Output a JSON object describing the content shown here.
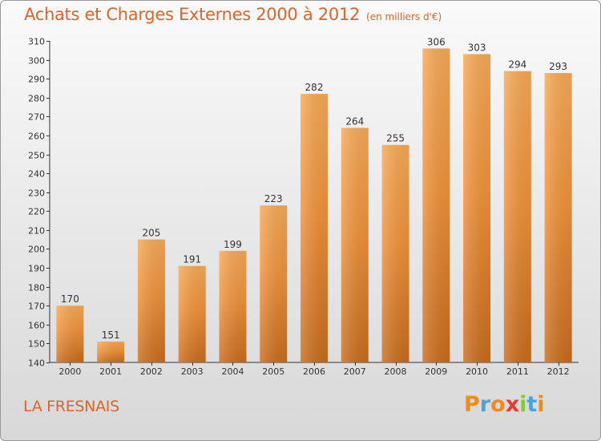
{
  "chart_data": {
    "type": "bar",
    "title": "Achats et Charges Externes 2000 à 2012",
    "subtitle": "(en milliers d'€)",
    "categories": [
      "2000",
      "2001",
      "2002",
      "2003",
      "2004",
      "2005",
      "2006",
      "2007",
      "2008",
      "2009",
      "2010",
      "2011",
      "2012"
    ],
    "values": [
      170,
      151,
      205,
      191,
      199,
      223,
      282,
      264,
      255,
      306,
      303,
      294,
      293
    ],
    "ylim": [
      140,
      310
    ],
    "yticks": [
      140,
      150,
      160,
      170,
      180,
      190,
      200,
      210,
      220,
      230,
      240,
      250,
      260,
      270,
      280,
      290,
      300,
      310
    ],
    "xlabel": "",
    "ylabel": "",
    "grid": false,
    "bar_color": "#f0923a",
    "bar_color_light": "#f7a955",
    "bar_color_dark": "#c96c1c"
  },
  "footer": {
    "place": "LA FRESNAIS",
    "logo": [
      "P",
      "r",
      "o",
      "x",
      "i",
      "t",
      "i"
    ],
    "logo_colors": [
      "#f08c1c",
      "#4aa3df",
      "#f08c1c",
      "#e53c2e",
      "#8cc63f",
      "#4aa3df",
      "#f08c1c"
    ]
  }
}
